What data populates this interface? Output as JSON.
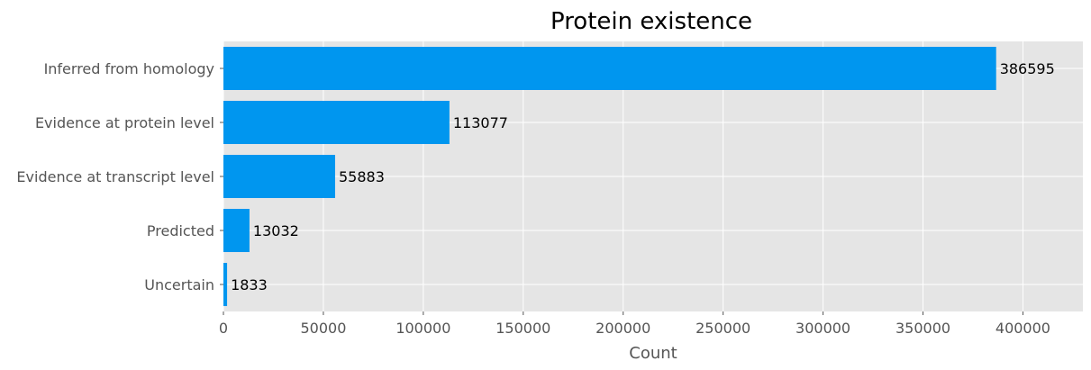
{
  "chart_data": {
    "type": "bar",
    "orientation": "horizontal",
    "title": "Protein existence",
    "xlabel": "Count",
    "ylabel": "",
    "categories": [
      "Inferred from homology",
      "Evidence at protein level",
      "Evidence at transcript level",
      "Predicted",
      "Uncertain"
    ],
    "values": [
      386595,
      113077,
      55883,
      13032,
      1833
    ],
    "xlim": [
      0,
      430000
    ],
    "xticks": [
      0,
      50000,
      100000,
      150000,
      200000,
      250000,
      300000,
      350000,
      400000
    ],
    "grid": true,
    "legend": "none",
    "bar_color": "#0096ef",
    "plot_background": "#e5e5e5",
    "grid_color": "#ffffff"
  }
}
